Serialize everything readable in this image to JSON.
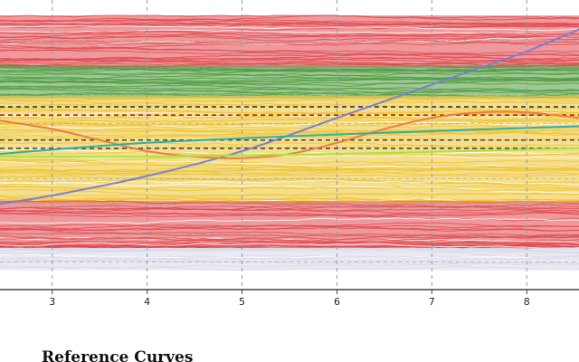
{
  "chart_data": {
    "type": "line",
    "title": "",
    "xlabel": "",
    "ylabel": "",
    "x_ticks": [
      "3",
      "4",
      "5",
      "6",
      "7",
      "8"
    ],
    "xlim": [
      2.45,
      8.55
    ],
    "ylim": [
      0,
      100
    ],
    "grid": true,
    "section_heading": "Reference Curves",
    "colors": {
      "red_band": "#e0474c",
      "green_band": "#4e9a3c",
      "yellow_band": "#ecc433",
      "light_band": "#d9dae8",
      "purple_curve": "#7b7fd2",
      "orange_curve": "#f07b43",
      "teal_curve": "#2fb0a5",
      "lime_curve": "#a6e63a",
      "grid": "#999999",
      "axis": "#444444"
    },
    "bands": [
      {
        "color": "red_band",
        "y_top": 99,
        "y_bottom": 80,
        "traces": 30
      },
      {
        "color": "green_band",
        "y_top": 81,
        "y_bottom": 69,
        "traces": 20
      },
      {
        "color": "yellow_band",
        "y_top": 70,
        "y_bottom": 31,
        "traces": 60
      },
      {
        "color": "red_band",
        "y_top": 32,
        "y_bottom": 15,
        "traces": 30
      },
      {
        "color": "light_band",
        "y_top": 15,
        "y_bottom": 7,
        "traces": 15
      }
    ],
    "reference_lines": [
      {
        "y": 66,
        "color": "#333333",
        "dash": "5,4"
      },
      {
        "y": 63,
        "color": "#b22222",
        "dash": "5,4"
      },
      {
        "y": 54,
        "color": "#444444",
        "dash": "5,4"
      },
      {
        "y": 51,
        "color": "#444444",
        "dash": "5,4"
      }
    ],
    "series": [
      {
        "color": "purple_curve",
        "x": [
          2.45,
          3,
          4,
          5,
          6,
          7,
          7.5,
          8,
          8.55
        ],
        "y": [
          31,
          34,
          41,
          50,
          62,
          74,
          80,
          86,
          94
        ]
      },
      {
        "color": "orange_curve",
        "x": [
          2.45,
          3,
          3.5,
          4,
          4.5,
          5,
          5.5,
          6,
          6.5,
          7,
          7.5,
          8,
          8.55
        ],
        "y": [
          61,
          58,
          54,
          50,
          48,
          47.5,
          49,
          53,
          58,
          62,
          64,
          64,
          62
        ]
      },
      {
        "color": "teal_curve",
        "x": [
          2.45,
          4,
          6,
          8.55
        ],
        "y": [
          49,
          53,
          56,
          59
        ]
      },
      {
        "color": "lime_curve",
        "x": [
          2.45,
          4,
          6,
          8.55
        ],
        "y": [
          48,
          48,
          49,
          51
        ]
      }
    ]
  }
}
